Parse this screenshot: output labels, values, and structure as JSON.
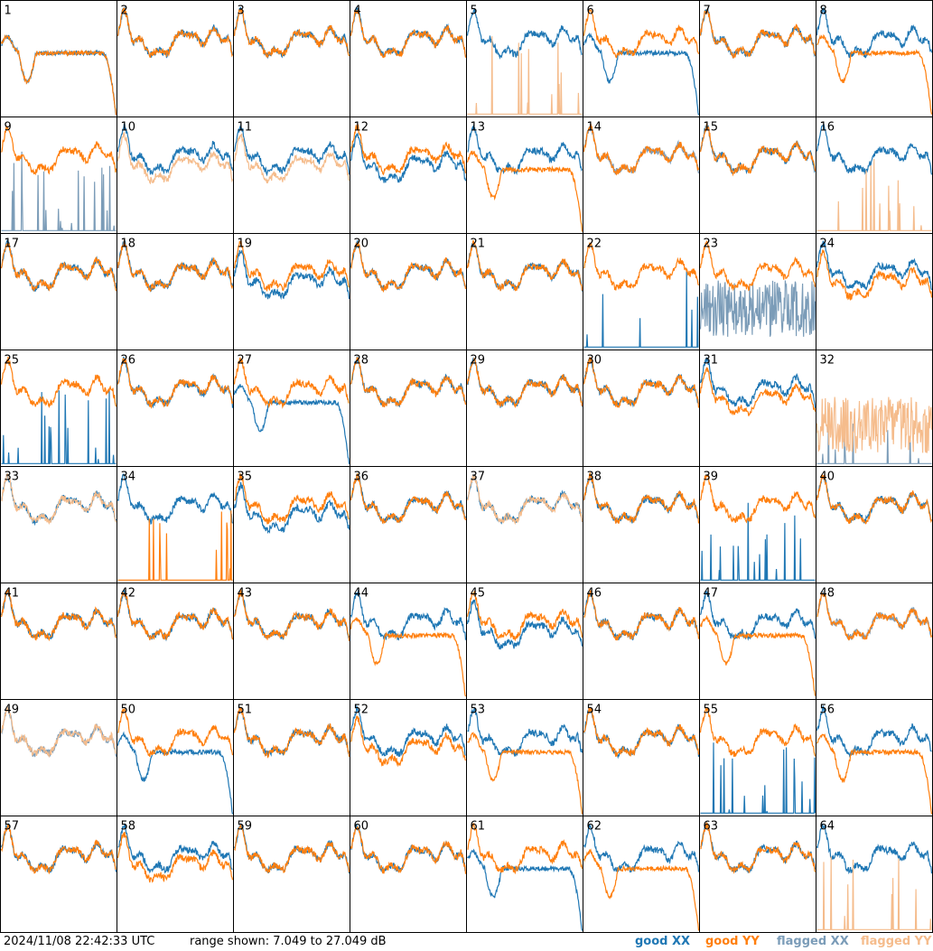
{
  "footer": {
    "timestamp": "2024/11/08 22:42:33 UTC",
    "range_text": "range shown: 7.049 to 27.049 dB"
  },
  "legend": [
    {
      "label": "good XX",
      "color": "#1f77b4"
    },
    {
      "label": "good YY",
      "color": "#ff7f0e"
    },
    {
      "label": "flagged XX",
      "color": "#7b9cb8"
    },
    {
      "label": "flagged YY",
      "color": "#f5bc8c"
    }
  ],
  "chart_data": {
    "type": "line",
    "grid_rows": 8,
    "grid_cols": 8,
    "y_unit": "dB",
    "ylim": [
      7.049,
      27.049
    ],
    "panel_labels": [
      "1",
      "2",
      "3",
      "4",
      "5",
      "6",
      "7",
      "8",
      "9",
      "10",
      "11",
      "12",
      "13",
      "14",
      "15",
      "16",
      "17",
      "18",
      "19",
      "20",
      "21",
      "22",
      "23",
      "24",
      "25",
      "26",
      "27",
      "28",
      "29",
      "30",
      "31",
      "32",
      "33",
      "34",
      "35",
      "36",
      "37",
      "38",
      "39",
      "40",
      "41",
      "42",
      "43",
      "44",
      "45",
      "46",
      "47",
      "48",
      "49",
      "50",
      "51",
      "52",
      "53",
      "54",
      "55",
      "56",
      "57",
      "58",
      "59",
      "60",
      "61",
      "62",
      "63",
      "64"
    ],
    "series_colors": {
      "good_xx": "#1f77b4",
      "good_yy": "#ff7f0e",
      "flagged_xx": "#7b9cb8",
      "flagged_yy": "#f5bc8c"
    },
    "panel_modes": {
      "1": [
        "droop",
        "droop"
      ],
      "5": [
        "normal",
        "spikes-flagged"
      ],
      "6": [
        "droop",
        "normal"
      ],
      "8": [
        "normal",
        "droop"
      ],
      "9": [
        "spikes-flagged",
        "normal"
      ],
      "10": [
        "normal",
        "lower-flagged"
      ],
      "11": [
        "normal",
        "lower-flagged"
      ],
      "12": [
        "lower",
        "normal"
      ],
      "13": [
        "normal",
        "droop"
      ],
      "14": [
        "flagged",
        "normal"
      ],
      "16": [
        "normal",
        "spikes-flagged"
      ],
      "19": [
        "lower",
        "normal"
      ],
      "22": [
        "spikes",
        "normal"
      ],
      "23": [
        "noisy-flagged",
        "normal"
      ],
      "24": [
        "normal",
        "lower"
      ],
      "25": [
        "spikes",
        "normal"
      ],
      "27": [
        "droop",
        "normal"
      ],
      "31": [
        "normal",
        "lower"
      ],
      "32": [
        "spikes-flagged",
        "noisy-flagged"
      ],
      "33": [
        "normal",
        "flagged"
      ],
      "34": [
        "normal",
        "spikes"
      ],
      "35": [
        "lower",
        "normal"
      ],
      "37": [
        "normal",
        "flagged"
      ],
      "39": [
        "spikes",
        "normal"
      ],
      "44": [
        "normal",
        "droop"
      ],
      "45": [
        "lower",
        "normal"
      ],
      "47": [
        "normal",
        "droop"
      ],
      "48": [
        "flagged",
        "normal"
      ],
      "49": [
        "flagged",
        "flagged"
      ],
      "50": [
        "droop",
        "normal"
      ],
      "52": [
        "normal",
        "lower"
      ],
      "53": [
        "normal",
        "droop"
      ],
      "55": [
        "spikes",
        "normal"
      ],
      "56": [
        "normal",
        "droop"
      ],
      "58": [
        "normal",
        "lower"
      ],
      "61": [
        "droop",
        "normal"
      ],
      "62": [
        "normal",
        "droop"
      ],
      "64": [
        "normal",
        "spikes-flagged"
      ]
    }
  }
}
